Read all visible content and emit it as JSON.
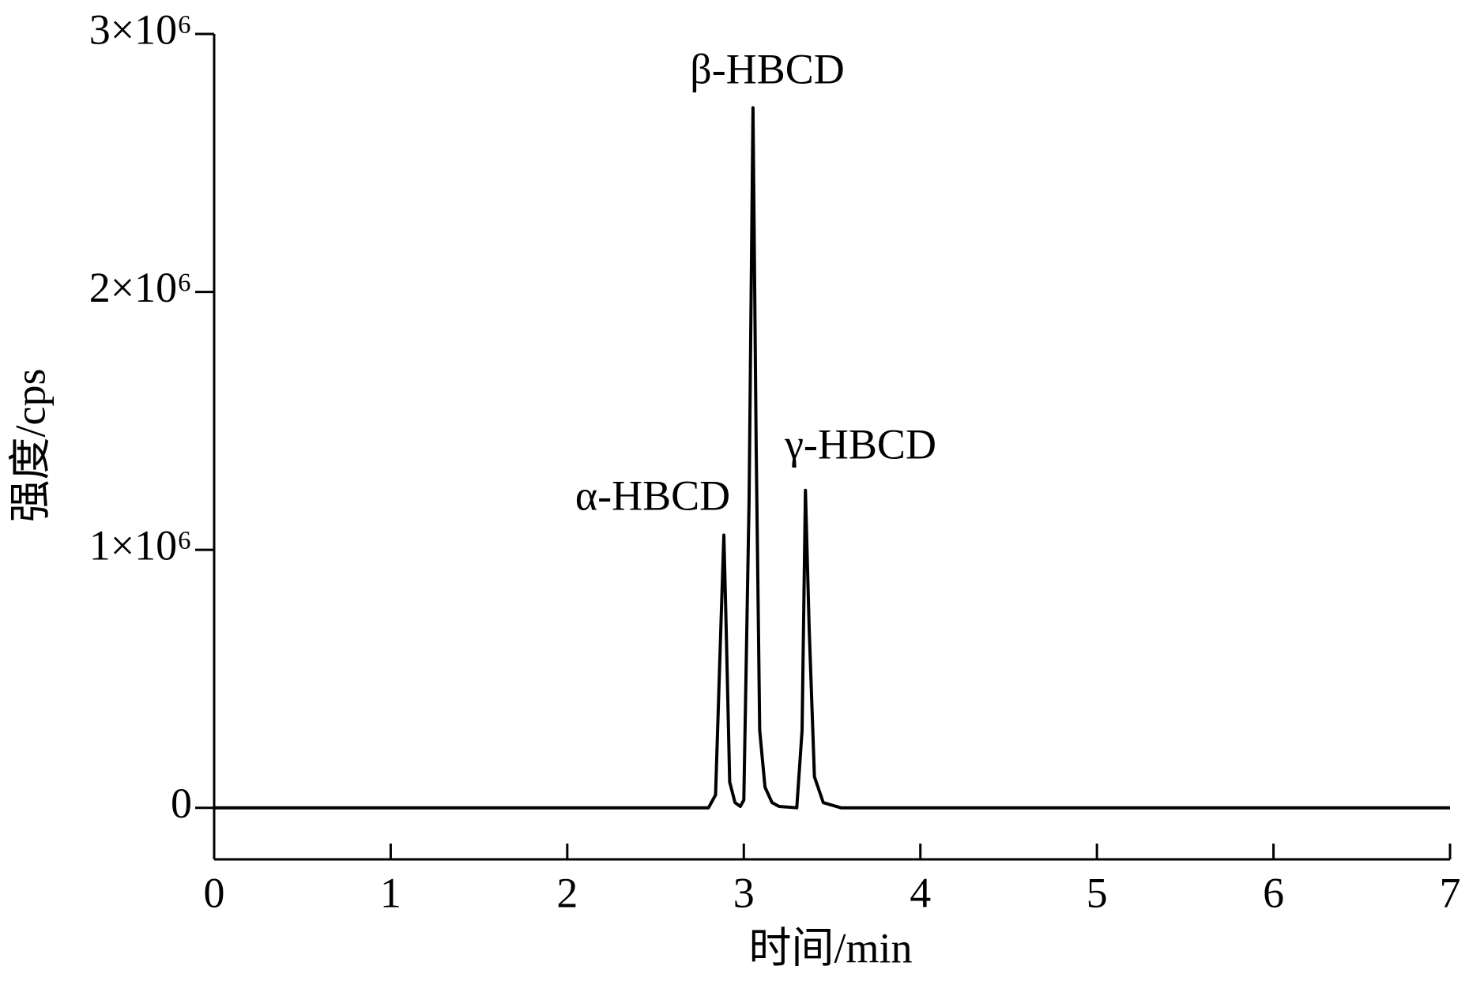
{
  "chart_data": {
    "type": "line",
    "x": [
      0,
      2.8,
      2.84,
      2.87,
      2.887,
      2.9,
      2.92,
      2.95,
      2.98,
      3.0,
      3.03,
      3.052,
      3.07,
      3.09,
      3.12,
      3.16,
      3.2,
      3.3,
      3.33,
      3.349,
      3.37,
      3.4,
      3.45,
      3.55,
      7
    ],
    "values": [
      0,
      0,
      50000,
      700000,
      1057000,
      700000,
      100000,
      20000,
      5000,
      30000,
      1200000,
      2714000,
      1400000,
      300000,
      80000,
      20000,
      5000,
      0,
      300000,
      1231000,
      700000,
      120000,
      20000,
      0,
      0
    ],
    "color": "#000000",
    "xlabel": "时间/min",
    "ylabel": "强度/cps",
    "xlim": [
      0,
      7
    ],
    "xticks": [
      0,
      1,
      2,
      3,
      4,
      5,
      6,
      7
    ],
    "ylim": [
      -200000,
      3000000
    ],
    "yticks": [
      {
        "value": 0,
        "label": "0"
      },
      {
        "value": 1000000,
        "label": "1×10⁶"
      },
      {
        "value": 2000000,
        "label": "2×10⁶"
      },
      {
        "value": 3000000,
        "label": "3×10⁶"
      }
    ],
    "annotations": [
      "α-HBCD",
      "β-HBCD",
      "γ-HBCD"
    ]
  }
}
